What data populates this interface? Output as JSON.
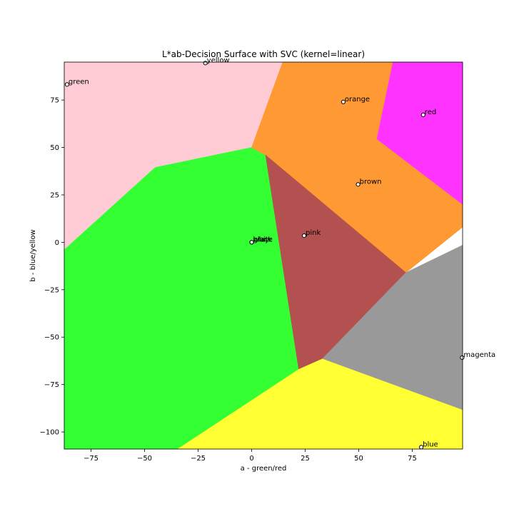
{
  "chart_data": {
    "type": "scatter",
    "title": "L*ab-Decision Surface with SVC (kernel=linear)",
    "xlabel": "a - green/red",
    "ylabel": "b - blue/yellow",
    "xlim": [
      -87.5,
      98.5
    ],
    "ylim": [
      -109,
      95
    ],
    "xticks": [
      -75,
      -50,
      -25,
      0,
      25,
      50,
      75
    ],
    "yticks": [
      -100,
      -75,
      -50,
      -25,
      0,
      25,
      50,
      75
    ],
    "xtick_labels": [
      "−75",
      "−50",
      "−25",
      "0",
      "25",
      "50",
      "75"
    ],
    "ytick_labels": [
      "−100",
      "−75",
      "−50",
      "−25",
      "0",
      "25",
      "50",
      "75"
    ],
    "grid": false,
    "points": [
      {
        "label": "green",
        "x": -86.2,
        "y": 83.2
      },
      {
        "label": "yellow",
        "x": -21.6,
        "y": 94.5
      },
      {
        "label": "orange",
        "x": 42.8,
        "y": 74.0
      },
      {
        "label": "red",
        "x": 80.1,
        "y": 67.2
      },
      {
        "label": "brown",
        "x": 49.7,
        "y": 30.5
      },
      {
        "label": "pink",
        "x": 24.5,
        "y": 3.5
      },
      {
        "label": "black",
        "x": 0.0,
        "y": 0.0
      },
      {
        "label": "white",
        "x": 0.0,
        "y": 0.0
      },
      {
        "label": "gray",
        "x": 0.0,
        "y": 0.0
      },
      {
        "label": "magenta",
        "x": 98.3,
        "y": -60.8
      },
      {
        "label": "blue",
        "x": 79.2,
        "y": -108.0
      }
    ],
    "regions": [
      {
        "class": "pink",
        "color": "#ffccd6",
        "polygon": [
          [
            -87.5,
            95
          ],
          [
            14.5,
            95
          ],
          [
            0,
            50
          ],
          [
            -45,
            39.5
          ],
          [
            -87.5,
            -4
          ]
        ]
      },
      {
        "class": "green",
        "color": "#33ff33",
        "polygon": [
          [
            -87.5,
            -4
          ],
          [
            -45,
            39.5
          ],
          [
            0,
            50
          ],
          [
            6.5,
            46
          ],
          [
            22,
            -67
          ],
          [
            -34.5,
            -109
          ],
          [
            -87.5,
            -109
          ]
        ]
      },
      {
        "class": "orange",
        "color": "#ff9933",
        "polygon": [
          [
            14.5,
            95
          ],
          [
            66,
            95
          ],
          [
            58.5,
            54.5
          ],
          [
            98.5,
            20
          ],
          [
            98.5,
            8
          ],
          [
            72,
            -16
          ],
          [
            6.5,
            46
          ],
          [
            0,
            50
          ]
        ]
      },
      {
        "class": "magenta",
        "color": "#ff33ff",
        "polygon": [
          [
            66,
            95
          ],
          [
            98.5,
            95
          ],
          [
            98.5,
            20
          ],
          [
            58.5,
            54.5
          ]
        ]
      },
      {
        "class": "brown",
        "color": "#b35151",
        "polygon": [
          [
            6.5,
            46
          ],
          [
            72,
            -16
          ],
          [
            33,
            -61.5
          ],
          [
            22,
            -67
          ]
        ]
      },
      {
        "class": "gray",
        "color": "#999999",
        "polygon": [
          [
            72,
            -16
          ],
          [
            98.5,
            -1.5
          ],
          [
            98.5,
            -88.5
          ],
          [
            33,
            -61.5
          ]
        ]
      },
      {
        "class": "yellow",
        "color": "#ffff33",
        "polygon": [
          [
            22,
            -67
          ],
          [
            33,
            -61.5
          ],
          [
            98.5,
            -88.5
          ],
          [
            98.5,
            -109
          ],
          [
            -34.5,
            -109
          ]
        ]
      }
    ]
  }
}
